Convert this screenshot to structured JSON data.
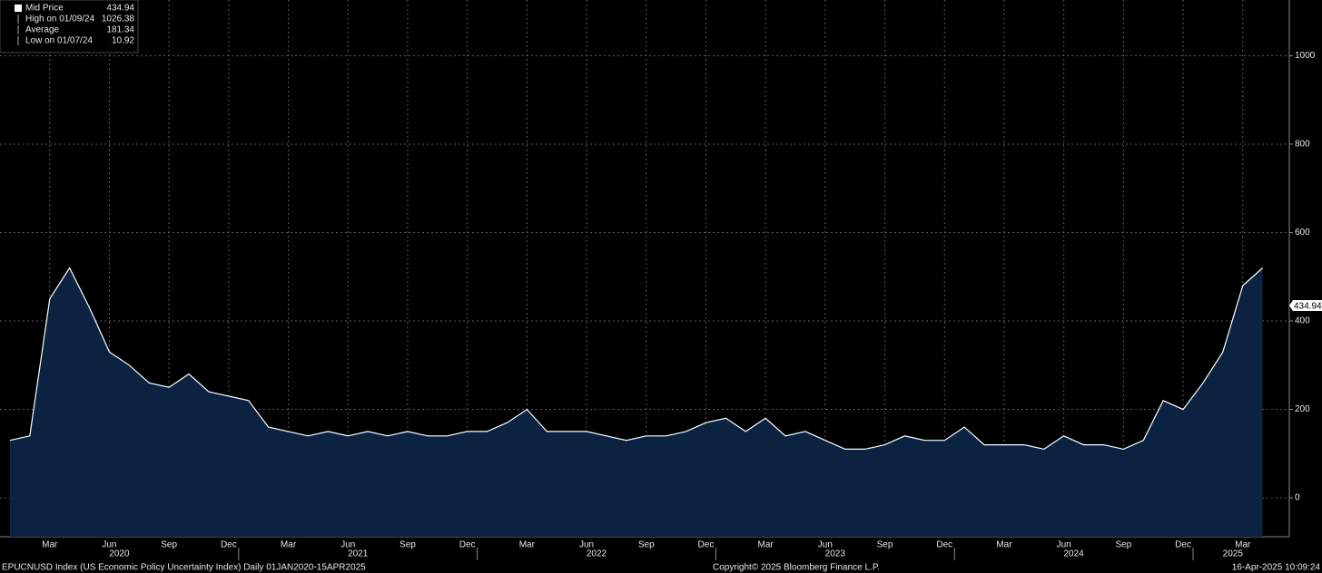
{
  "chart_data": {
    "type": "line",
    "legend": [
      {
        "label": "Mid Price",
        "value": "434.94"
      },
      {
        "label": "High on 01/09/24",
        "value": "1026.38"
      },
      {
        "label": "Average",
        "value": "181.34"
      },
      {
        "label": "Low on 01/07/24",
        "value": "10.92"
      }
    ],
    "x": [
      "2020-01",
      "2020-02",
      "2020-03",
      "2020-04",
      "2020-05",
      "2020-06",
      "2020-07",
      "2020-08",
      "2020-09",
      "2020-10",
      "2020-11",
      "2020-12",
      "2021-01",
      "2021-02",
      "2021-03",
      "2021-04",
      "2021-05",
      "2021-06",
      "2021-07",
      "2021-08",
      "2021-09",
      "2021-10",
      "2021-11",
      "2021-12",
      "2022-01",
      "2022-02",
      "2022-03",
      "2022-04",
      "2022-05",
      "2022-06",
      "2022-07",
      "2022-08",
      "2022-09",
      "2022-10",
      "2022-11",
      "2022-12",
      "2023-01",
      "2023-02",
      "2023-03",
      "2023-04",
      "2023-05",
      "2023-06",
      "2023-07",
      "2023-08",
      "2023-09",
      "2023-10",
      "2023-11",
      "2023-12",
      "2024-01",
      "2024-02",
      "2024-03",
      "2024-04",
      "2024-05",
      "2024-06",
      "2024-07",
      "2024-08",
      "2024-09",
      "2024-10",
      "2024-11",
      "2024-12",
      "2025-01",
      "2025-02",
      "2025-03",
      "2025-04"
    ],
    "series": [
      {
        "name": "Mid Price",
        "color": "#ffffff",
        "fill": "#0b2340",
        "values": [
          130,
          140,
          450,
          520,
          430,
          330,
          300,
          260,
          250,
          280,
          240,
          230,
          220,
          160,
          150,
          140,
          150,
          140,
          150,
          140,
          150,
          140,
          140,
          150,
          150,
          170,
          200,
          150,
          150,
          150,
          140,
          130,
          140,
          140,
          150,
          170,
          180,
          150,
          180,
          140,
          150,
          130,
          110,
          110,
          120,
          140,
          130,
          130,
          160,
          120,
          120,
          120,
          110,
          140,
          120,
          120,
          110,
          130,
          220,
          200,
          260,
          330,
          480,
          520
        ]
      }
    ],
    "ylim": [
      -88,
      1126
    ],
    "yticks": [
      0,
      200,
      400,
      600,
      800,
      1000
    ],
    "xticks": [
      {
        "value": "2020-03",
        "label": "Mar"
      },
      {
        "value": "2020-06",
        "label": "Jun"
      },
      {
        "value": "2020-09",
        "label": "Sep"
      },
      {
        "value": "2020-12",
        "label": "Dec"
      },
      {
        "value": "2021-03",
        "label": "Mar"
      },
      {
        "value": "2021-06",
        "label": "Jun"
      },
      {
        "value": "2021-09",
        "label": "Sep"
      },
      {
        "value": "2021-12",
        "label": "Dec"
      },
      {
        "value": "2022-03",
        "label": "Mar"
      },
      {
        "value": "2022-06",
        "label": "Jun"
      },
      {
        "value": "2022-09",
        "label": "Sep"
      },
      {
        "value": "2022-12",
        "label": "Dec"
      },
      {
        "value": "2023-03",
        "label": "Mar"
      },
      {
        "value": "2023-06",
        "label": "Jun"
      },
      {
        "value": "2023-09",
        "label": "Sep"
      },
      {
        "value": "2023-12",
        "label": "Dec"
      },
      {
        "value": "2024-03",
        "label": "Mar"
      },
      {
        "value": "2024-06",
        "label": "Jun"
      },
      {
        "value": "2024-09",
        "label": "Sep"
      },
      {
        "value": "2024-12",
        "label": "Dec"
      },
      {
        "value": "2025-03",
        "label": "Mar"
      }
    ],
    "year_labels": [
      {
        "value": "2020-07",
        "label": "2020"
      },
      {
        "value": "2021-07",
        "label": "2021"
      },
      {
        "value": "2022-07",
        "label": "2022"
      },
      {
        "value": "2023-07",
        "label": "2023"
      },
      {
        "value": "2024-07",
        "label": "2024"
      },
      {
        "value": "2025-03",
        "label": "2025"
      }
    ],
    "grid": true,
    "footer_left": "EPUCNUSD Index (US Economic Policy Uncertainty Index)  Daily 01JAN2020-15APR2025",
    "footer_center": "Copyright© 2025 Bloomberg Finance L.P.",
    "footer_right": "16-Apr-2025 10:09:24"
  }
}
